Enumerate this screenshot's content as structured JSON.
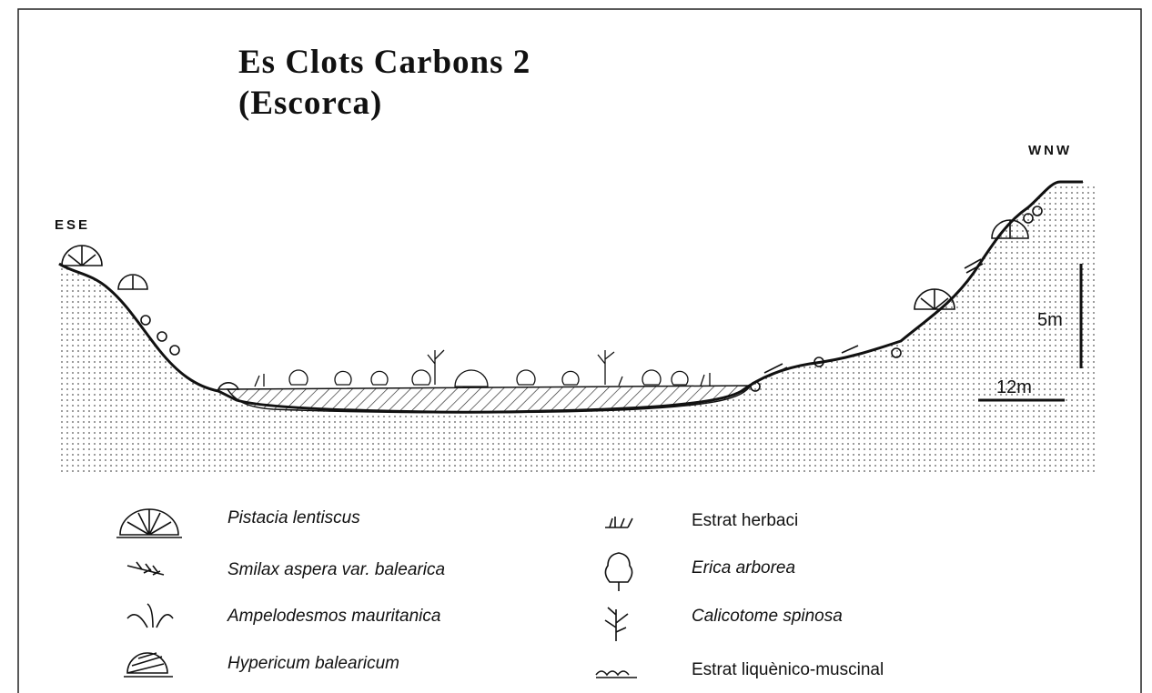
{
  "title": [
    "Es Clots Carbons 2",
    "(Escorca)"
  ],
  "profile": {
    "left_label": "ESE",
    "right_label": "WNW"
  },
  "scale": {
    "vertical": "5m",
    "horizontal": "12m"
  },
  "legend": {
    "items": [
      {
        "label": "Pistacia lentiscus"
      },
      {
        "label": "Smilax aspera var. balearica"
      },
      {
        "label": "Ampelodesmos mauritanica"
      },
      {
        "label": "Hypericum balearicum"
      },
      {
        "label": "Estrat herbaci"
      },
      {
        "label": "Erica arborea"
      },
      {
        "label": "Calicotome spinosa"
      },
      {
        "label": "Estrat liquènico-muscinal"
      }
    ]
  }
}
